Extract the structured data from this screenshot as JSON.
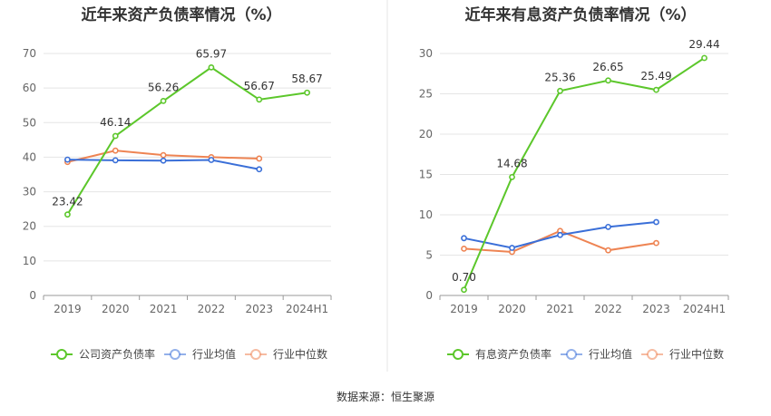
{
  "footer": {
    "source": "数据来源：恒生聚源"
  },
  "chart_data": [
    {
      "type": "line",
      "title": "近年来资产负债率情况（%）",
      "categories": [
        "2019",
        "2020",
        "2021",
        "2022",
        "2023",
        "2024H1"
      ],
      "ylim": [
        0,
        70
      ],
      "yticks": [
        0,
        10,
        20,
        30,
        40,
        50,
        60,
        70
      ],
      "grid": true,
      "legend_position": "bottom",
      "series": [
        {
          "name": "公司资产负债率",
          "color": "#5cc72b",
          "values": [
            23.42,
            46.14,
            56.26,
            65.97,
            56.67,
            58.67
          ],
          "labels": [
            "23.42",
            "46.14",
            "56.26",
            "65.97",
            "56.67",
            "58.67"
          ]
        },
        {
          "name": "行业均值",
          "color": "#3a6fd8",
          "values": [
            39.3,
            39.1,
            39.0,
            39.2,
            36.5,
            null
          ]
        },
        {
          "name": "行业中位数",
          "color": "#ee8453",
          "values": [
            38.6,
            41.9,
            40.6,
            40.0,
            39.6,
            null
          ]
        }
      ]
    },
    {
      "type": "line",
      "title": "近年来有息资产负债率情况（%）",
      "categories": [
        "2019",
        "2020",
        "2021",
        "2022",
        "2023",
        "2024H1"
      ],
      "ylim": [
        0,
        30
      ],
      "yticks": [
        0,
        5,
        10,
        15,
        20,
        25,
        30
      ],
      "grid": true,
      "legend_position": "bottom",
      "series": [
        {
          "name": "有息资产负债率",
          "color": "#5cc72b",
          "values": [
            0.7,
            14.68,
            25.36,
            26.65,
            25.49,
            29.44
          ],
          "labels": [
            "0.70",
            "14.68",
            "25.36",
            "26.65",
            "25.49",
            "29.44"
          ]
        },
        {
          "name": "行业均值",
          "color": "#3a6fd8",
          "values": [
            7.1,
            5.9,
            7.5,
            8.5,
            9.1,
            null
          ]
        },
        {
          "name": "行业中位数",
          "color": "#ee8453",
          "values": [
            5.8,
            5.4,
            8.0,
            5.6,
            6.5,
            null
          ]
        }
      ]
    }
  ]
}
